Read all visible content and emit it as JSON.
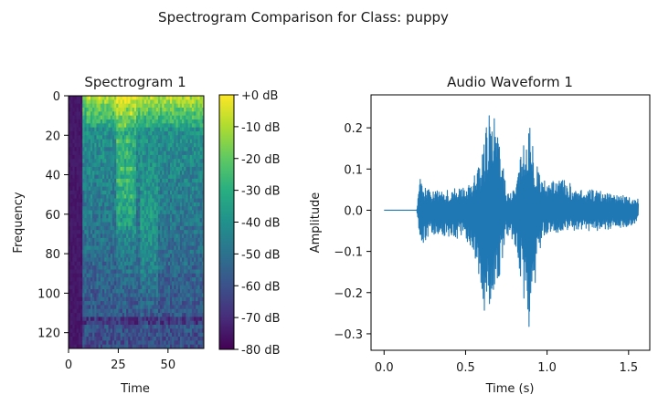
{
  "figure": {
    "suptitle": "Spectrogram Comparison for Class: puppy"
  },
  "chart_data": [
    {
      "type": "heatmap",
      "title": "Spectrogram 1",
      "xlabel": "Time",
      "ylabel": "Frequency",
      "xlim": [
        0,
        68
      ],
      "ylim": [
        128,
        0
      ],
      "x_ticks": [
        0,
        25,
        50
      ],
      "y_ticks": [
        0,
        20,
        40,
        60,
        80,
        100,
        120
      ],
      "colorbar": {
        "colormap": "viridis",
        "range_db": [
          -80,
          0
        ],
        "ticks": [
          0,
          -10,
          -20,
          -30,
          -40,
          -50,
          -60,
          -70,
          -80
        ],
        "tick_labels": [
          "+0 dB",
          "-10 dB",
          "-20 dB",
          "-30 dB",
          "-40 dB",
          "-50 dB",
          "-60 dB",
          "-70 dB",
          "-80 dB"
        ]
      }
    },
    {
      "type": "line",
      "title": "Audio Waveform 1",
      "xlabel": "Time (s)",
      "ylabel": "Amplitude",
      "xlim": [
        -0.08,
        1.63
      ],
      "ylim": [
        -0.34,
        0.28
      ],
      "x_ticks": [
        0.0,
        0.5,
        1.0,
        1.5
      ],
      "x_tick_labels": [
        "0.0",
        "0.5",
        "1.0",
        "1.5"
      ],
      "y_ticks": [
        0.2,
        0.1,
        0.0,
        -0.1,
        -0.2,
        -0.3
      ],
      "y_tick_labels": [
        "0.2",
        "0.1",
        "0.0",
        "−0.1",
        "−0.2",
        "−0.3"
      ],
      "color": "#1f77b4",
      "duration_s": 1.56,
      "envelope": {
        "t": [
          0.0,
          0.2,
          0.22,
          0.26,
          0.3,
          0.35,
          0.4,
          0.45,
          0.5,
          0.55,
          0.6,
          0.63,
          0.66,
          0.7,
          0.75,
          0.8,
          0.85,
          0.88,
          0.92,
          0.95,
          1.0,
          1.05,
          1.1,
          1.2,
          1.3,
          1.4,
          1.5,
          1.56
        ],
        "max": [
          0.0,
          0.0,
          0.08,
          0.05,
          0.05,
          0.045,
          0.05,
          0.055,
          0.06,
          0.08,
          0.13,
          0.22,
          0.26,
          0.2,
          0.05,
          0.05,
          0.16,
          0.24,
          0.14,
          0.1,
          0.07,
          0.07,
          0.075,
          0.05,
          0.05,
          0.04,
          0.035,
          0.03
        ],
        "min": [
          0.0,
          0.0,
          -0.09,
          -0.07,
          -0.06,
          -0.06,
          -0.065,
          -0.07,
          -0.07,
          -0.1,
          -0.2,
          -0.29,
          -0.26,
          -0.18,
          -0.06,
          -0.08,
          -0.19,
          -0.32,
          -0.2,
          -0.1,
          -0.06,
          -0.06,
          -0.05,
          -0.05,
          -0.05,
          -0.045,
          -0.04,
          -0.03
        ]
      }
    }
  ]
}
